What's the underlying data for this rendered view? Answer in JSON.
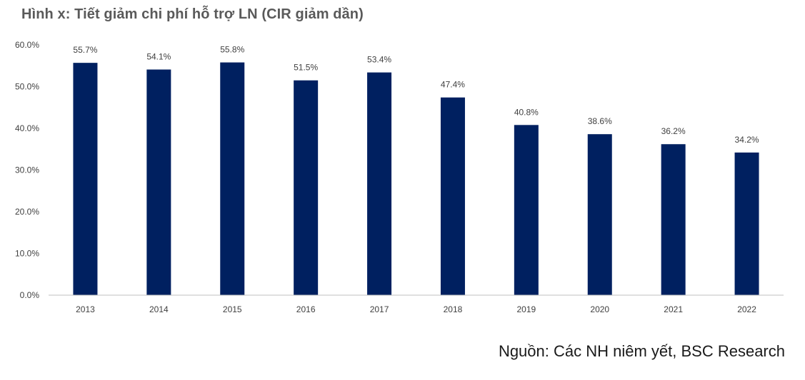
{
  "figure": {
    "title": "Hình x: Tiết giảm chi phí hỗ trợ LN (CIR giảm dần)",
    "source": "Nguồn: Các NH niêm yết, BSC Research"
  },
  "chart_data": {
    "type": "bar",
    "title": "Hình x: Tiết giảm chi phí hỗ trợ LN (CIR giảm dần)",
    "xlabel": "",
    "ylabel": "",
    "categories": [
      "2013",
      "2014",
      "2015",
      "2016",
      "2017",
      "2018",
      "2019",
      "2020",
      "2021",
      "2022"
    ],
    "values": [
      55.7,
      54.1,
      55.8,
      51.5,
      53.4,
      47.4,
      40.8,
      38.6,
      36.2,
      34.2
    ],
    "data_labels": [
      "55.7%",
      "54.1%",
      "55.8%",
      "51.5%",
      "53.4%",
      "47.4%",
      "40.8%",
      "38.6%",
      "36.2%",
      "34.2%"
    ],
    "ylim": [
      0,
      60
    ],
    "yticks": [
      0,
      10,
      20,
      30,
      40,
      50,
      60
    ],
    "ytick_labels": [
      "0.0%",
      "10.0%",
      "20.0%",
      "30.0%",
      "40.0%",
      "50.0%",
      "60.0%"
    ],
    "grid": false,
    "legend": "none",
    "bar_color": "#002060",
    "axis_color": "#bfbfbf"
  }
}
